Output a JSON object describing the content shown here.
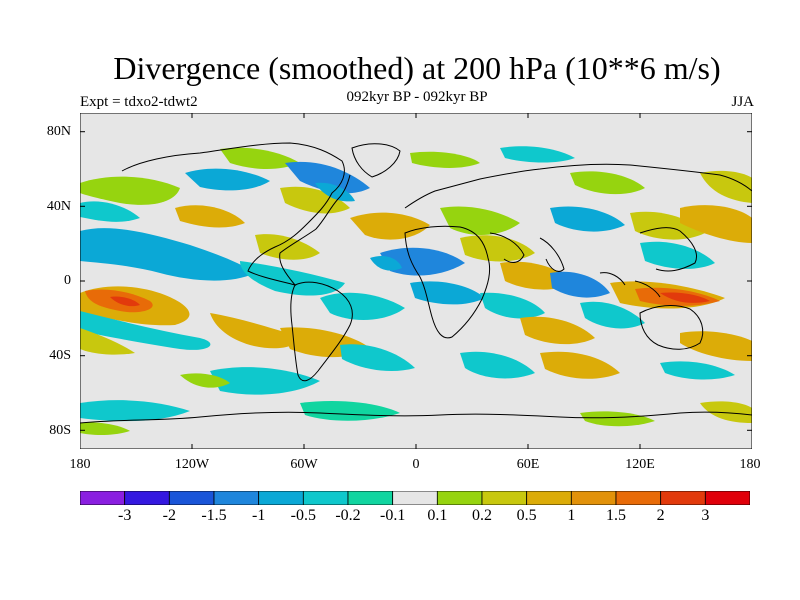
{
  "title": "Divergence (smoothed) at 200 hPa (10**6 m/s)",
  "subtitle": "092kyr BP - 092kyr BP",
  "experiment": "Expt = tdxo2-tdwt2",
  "season": "JJA",
  "lat_labels": [
    "80N",
    "40N",
    "0",
    "40S",
    "80S"
  ],
  "lon_labels": [
    "180",
    "120W",
    "60W",
    "0",
    "60E",
    "120E",
    "180"
  ],
  "colorbar": {
    "labels": [
      "-3",
      "-2",
      "-1.5",
      "-1",
      "-0.5",
      "-0.2",
      "-0.1",
      "0.1",
      "0.2",
      "0.5",
      "1",
      "1.5",
      "2",
      "3"
    ],
    "colors": [
      "#8a1fe0",
      "#3418e0",
      "#1a55d8",
      "#1f86dc",
      "#0ba8d6",
      "#0fc8cc",
      "#11d5a0",
      "#e6e6e6",
      "#96d40f",
      "#c8c80e",
      "#dcac08",
      "#e2920a",
      "#e86b08",
      "#e23a0c",
      "#e0000a"
    ]
  },
  "colors": {
    "ocean_background": "#e6e6e6",
    "coastline": "#000000"
  }
}
